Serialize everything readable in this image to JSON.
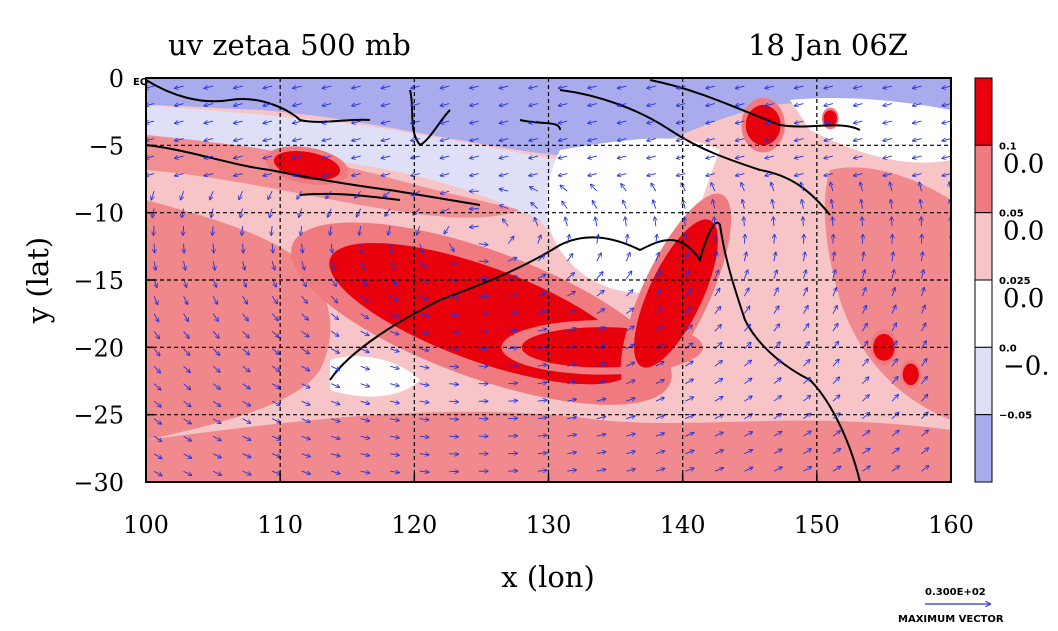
{
  "chart_data": {
    "type": "heatmap",
    "title_left": "uv zetaa 500 mb",
    "title_right": "18 Jan 06Z",
    "xlabel": "x (lon)",
    "ylabel": "y (lat)",
    "xlim": [
      100,
      160
    ],
    "ylim": [
      -30,
      0
    ],
    "x_ticks": [
      100,
      110,
      120,
      130,
      140,
      150,
      160
    ],
    "y_ticks": [
      0,
      -5,
      -10,
      -15,
      -20,
      -25,
      -30
    ],
    "y_tick_labels": [
      "0",
      "−5",
      "−10",
      "−15",
      "−20",
      "−25",
      "−30"
    ],
    "y_zero_suffix": "EQ",
    "grid": true,
    "colorbar": {
      "colors": [
        "#e8000c",
        "#ef7b80",
        "#f7c5c7",
        "#ffffff",
        "#dfe0f8",
        "#a9abec"
      ],
      "small_labels": [
        "0.1",
        "0.05",
        "0.025",
        "0.0",
        "−0.05"
      ],
      "big_labels": [
        "0.0",
        "0.0",
        "0.0",
        "−0."
      ]
    },
    "vector_legend": {
      "value": "0.300E+02",
      "label": "MAXIMUM VECTOR"
    },
    "fields": {
      "description_free": true,
      "colors": {
        "strong_pos": "#e8000c",
        "pos": "#ef7b80",
        "weak_pos": "#f7c5c7",
        "zero": "#ffffff",
        "weak_neg": "#dfe0f8",
        "neg": "#a9abec",
        "coast": "#000000",
        "vector": "#2233dd"
      },
      "blobs": [
        {
          "lon": 125,
          "lat": -17.5,
          "rx": 12,
          "ry": 3.5,
          "level": "strong_pos",
          "rot": 20
        },
        {
          "lon": 134,
          "lat": -20,
          "rx": 6,
          "ry": 1.5,
          "level": "strong_pos",
          "rot": 0
        },
        {
          "lon": 139.5,
          "lat": -16,
          "rx": 2,
          "ry": 6,
          "level": "strong_pos",
          "rot": 25
        },
        {
          "lon": 146,
          "lat": -3.5,
          "rx": 1.3,
          "ry": 1.5,
          "level": "strong_pos",
          "rot": 0
        },
        {
          "lon": 155,
          "lat": -20,
          "rx": 0.8,
          "ry": 1,
          "level": "strong_pos",
          "rot": 0
        },
        {
          "lon": 157,
          "lat": -22,
          "rx": 0.6,
          "ry": 0.8,
          "level": "strong_pos",
          "rot": 0
        },
        {
          "lon": 151,
          "lat": -3,
          "rx": 0.5,
          "ry": 0.6,
          "level": "strong_pos",
          "rot": 0
        },
        {
          "lon": 112,
          "lat": -6.5,
          "rx": 2.5,
          "ry": 1,
          "level": "strong_pos",
          "rot": 10
        }
      ]
    }
  }
}
